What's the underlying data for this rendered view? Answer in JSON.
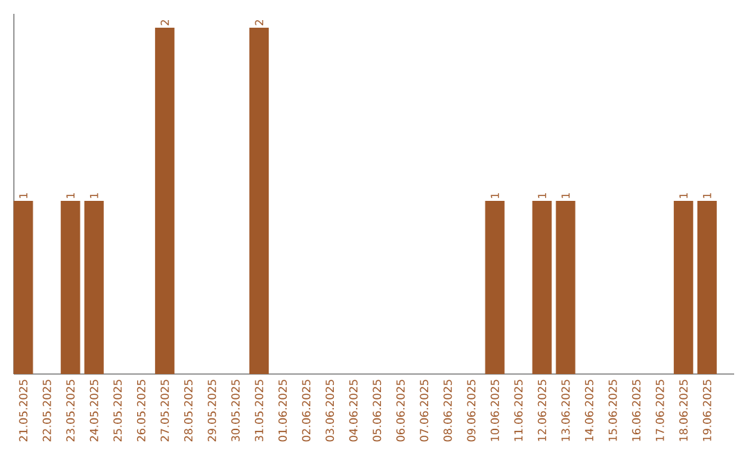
{
  "chart_data": {
    "type": "bar",
    "categories": [
      "21.05.2025",
      "22.05.2025",
      "23.05.2025",
      "24.05.2025",
      "25.05.2025",
      "26.05.2025",
      "27.05.2025",
      "28.05.2025",
      "29.05.2025",
      "30.05.2025",
      "31.05.2025",
      "01.06.2025",
      "02.06.2025",
      "03.06.2025",
      "04.06.2025",
      "05.06.2025",
      "06.06.2025",
      "07.06.2025",
      "08.06.2025",
      "09.06.2025",
      "10.06.2025",
      "11.06.2025",
      "12.06.2025",
      "13.06.2025",
      "14.06.2025",
      "15.06.2025",
      "16.06.2025",
      "17.06.2025",
      "18.06.2025",
      "19.06.2025"
    ],
    "values": [
      1,
      0,
      1,
      1,
      0,
      0,
      2,
      0,
      0,
      0,
      2,
      0,
      0,
      0,
      0,
      0,
      0,
      0,
      0,
      0,
      1,
      0,
      1,
      1,
      0,
      0,
      0,
      0,
      1,
      1
    ],
    "value_labels": [
      "1",
      null,
      "1",
      "1",
      null,
      null,
      "2",
      null,
      null,
      null,
      "2",
      null,
      null,
      null,
      null,
      null,
      null,
      null,
      null,
      null,
      "1",
      null,
      "1",
      "1",
      null,
      null,
      null,
      null,
      "1",
      "1"
    ],
    "color": "#a0592a",
    "tick_labels": "x"
  }
}
